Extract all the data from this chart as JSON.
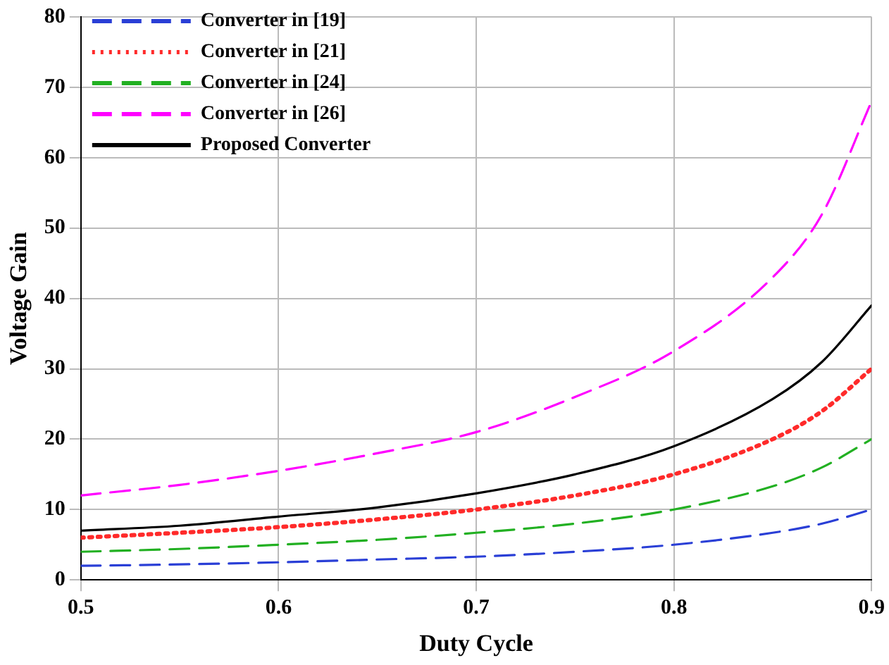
{
  "chart_data": {
    "type": "line",
    "xlabel": "Duty Cycle",
    "ylabel": "Voltage Gain",
    "x": [
      0.5,
      0.55,
      0.6,
      0.65,
      0.7,
      0.75,
      0.8,
      0.85,
      0.875,
      0.9
    ],
    "series": [
      {
        "name": "Converter in [19]",
        "color": "#2a3fd6",
        "line_style": "dashed",
        "values": [
          2,
          2.2,
          2.5,
          2.9,
          3.3,
          4,
          5,
          6.7,
          8,
          10
        ]
      },
      {
        "name": "Converter in [21]",
        "color": "#ff2a2a",
        "line_style": "dotted",
        "values": [
          6,
          6.7,
          7.5,
          8.6,
          10,
          12,
          15,
          20,
          24,
          30
        ]
      },
      {
        "name": "Converter in [24]",
        "color": "#22b022",
        "line_style": "dashed",
        "values": [
          4,
          4.4,
          5,
          5.7,
          6.7,
          8,
          10,
          13.3,
          16,
          20
        ]
      },
      {
        "name": "Converter in [26]",
        "color": "#ff00ff",
        "line_style": "dashed",
        "values": [
          12,
          13.5,
          15.5,
          18,
          21,
          26,
          32.5,
          43,
          52,
          68
        ]
      },
      {
        "name": "Proposed Converter",
        "color": "#000000",
        "line_style": "solid",
        "values": [
          7,
          7.7,
          9,
          10.3,
          12.3,
          15,
          19,
          25.7,
          31,
          39
        ]
      }
    ],
    "xlim": [
      0.5,
      0.9
    ],
    "xticks": [
      0.5,
      0.6,
      0.7,
      0.8,
      0.9
    ],
    "ylim": [
      0,
      80
    ],
    "yticks": [
      0,
      10,
      20,
      30,
      40,
      50,
      60,
      70,
      80
    ],
    "grid": true,
    "legend": "top left",
    "marker": "none"
  }
}
